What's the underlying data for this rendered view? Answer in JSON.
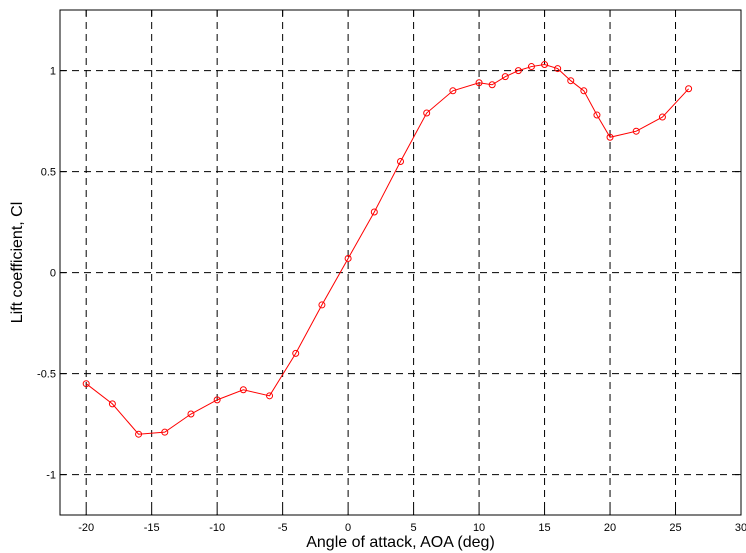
{
  "chart_data": {
    "type": "line",
    "title": "",
    "xlabel": "Angle of attack, AOA (deg)",
    "ylabel": "Lift coefficient, Cl",
    "xlim": [
      -22,
      30
    ],
    "ylim": [
      -1.2,
      1.3
    ],
    "xticks": [
      -20,
      -15,
      -10,
      -5,
      0,
      5,
      10,
      15,
      20,
      25,
      30
    ],
    "xtick_labels": [
      "-20",
      "-15",
      "-10",
      "-5",
      "0",
      "5",
      "10",
      "15",
      "20",
      "25",
      "30"
    ],
    "yticks": [
      -1,
      -0.5,
      0,
      0.5,
      1
    ],
    "ytick_labels": [
      "-1",
      "-0.5",
      "0",
      "0.5",
      "1"
    ],
    "grid": true,
    "grid_style": "dashed",
    "legend": "none",
    "series": [
      {
        "color": "#ff0000",
        "marker": "circle",
        "x": [
          -20,
          -18,
          -16,
          -14,
          -12,
          -10,
          -8,
          -6,
          -4,
          -2,
          0,
          2,
          4,
          6,
          8,
          10,
          11,
          12,
          13,
          14,
          15,
          16,
          17,
          18,
          19,
          20,
          22,
          24,
          26
        ],
        "y": [
          -0.55,
          -0.65,
          -0.8,
          -0.79,
          -0.7,
          -0.63,
          -0.58,
          -0.61,
          -0.4,
          -0.16,
          0.07,
          0.3,
          0.55,
          0.79,
          0.9,
          0.94,
          0.93,
          0.97,
          1.0,
          1.02,
          1.03,
          1.01,
          0.95,
          0.9,
          0.78,
          0.67,
          0.7,
          0.77,
          0.91
        ]
      }
    ]
  }
}
